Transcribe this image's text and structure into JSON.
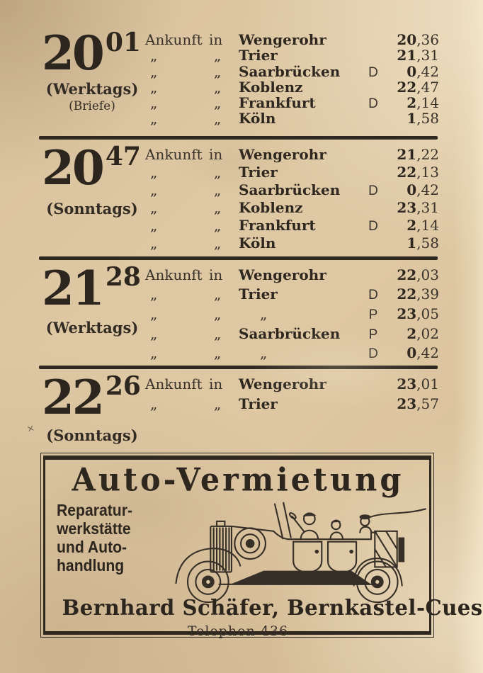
{
  "page": {
    "paper_color": "#dcc5a0",
    "ink_color": "#2e2820",
    "stray_mark": "×"
  },
  "blocks": [
    {
      "hour": "20",
      "minutes": "01",
      "labels": [
        "(Werktags)",
        "(Briefe)"
      ],
      "rows": [
        {
          "a": "Ankunft",
          "b": "in",
          "city": "Wengerohr",
          "mark": "",
          "time": "20,36"
        },
        {
          "a": "„",
          "b": "„",
          "city": "Trier",
          "mark": "",
          "time": "21,31"
        },
        {
          "a": "„",
          "b": "„",
          "city": "Saarbrücken",
          "mark": "D",
          "time": "0,42"
        },
        {
          "a": "„",
          "b": "„",
          "city": "Koblenz",
          "mark": "",
          "time": "22,47"
        },
        {
          "a": "„",
          "b": "„",
          "city": "Frankfurt",
          "mark": "D",
          "time": "2,14"
        },
        {
          "a": "„",
          "b": "„",
          "city": "Köln",
          "mark": "",
          "time": "1,58"
        }
      ]
    },
    {
      "hour": "20",
      "minutes": "47",
      "labels": [
        "(Sonntags)"
      ],
      "rows": [
        {
          "a": "Ankunft",
          "b": "in",
          "city": "Wengerohr",
          "mark": "",
          "time": "21,22"
        },
        {
          "a": "„",
          "b": "„",
          "city": "Trier",
          "mark": "",
          "time": "22,13"
        },
        {
          "a": "„",
          "b": "„",
          "city": "Saarbrücken",
          "mark": "D",
          "time": "0,42"
        },
        {
          "a": "„",
          "b": "„",
          "city": "Koblenz",
          "mark": "",
          "time": "23,31"
        },
        {
          "a": "„",
          "b": "„",
          "city": "Frankfurt",
          "mark": "D",
          "time": "2,14"
        },
        {
          "a": "„",
          "b": "„",
          "city": "Köln",
          "mark": "",
          "time": "1,58"
        }
      ]
    },
    {
      "hour": "21",
      "minutes": "28",
      "labels": [
        "(Werktags)"
      ],
      "rows": [
        {
          "a": "Ankunft",
          "b": "in",
          "city": "Wengerohr",
          "mark": "",
          "time": "22,03"
        },
        {
          "a": "„",
          "b": "„",
          "city": "Trier",
          "mark": "D",
          "time": "22,39"
        },
        {
          "a": "„",
          "b": "„",
          "city": "„",
          "mark": "P",
          "time": "23,05"
        },
        {
          "a": "„",
          "b": "„",
          "city": "Saarbrücken",
          "mark": "P",
          "time": "2,02"
        },
        {
          "a": "„",
          "b": "„",
          "city": "„",
          "mark": "D",
          "time": "0,42"
        }
      ]
    },
    {
      "hour": "22",
      "minutes": "26",
      "labels": [
        "(Sonntags)"
      ],
      "rows": [
        {
          "a": "Ankunft",
          "b": "in",
          "city": "Wengerohr",
          "mark": "",
          "time": "23,01"
        },
        {
          "a": "„",
          "b": "„",
          "city": "Trier",
          "mark": "",
          "time": "23,57"
        }
      ]
    }
  ],
  "ad": {
    "title": "Auto-Vermietung",
    "services": [
      "Reparatur-",
      "werkstätte",
      "und Auto-",
      "handlung"
    ],
    "proprietor": "Bernhard Schäfer, Bernkastel-Cues",
    "telephone": "Telephon 436",
    "illustration": "open-touring-car-with-passengers"
  }
}
